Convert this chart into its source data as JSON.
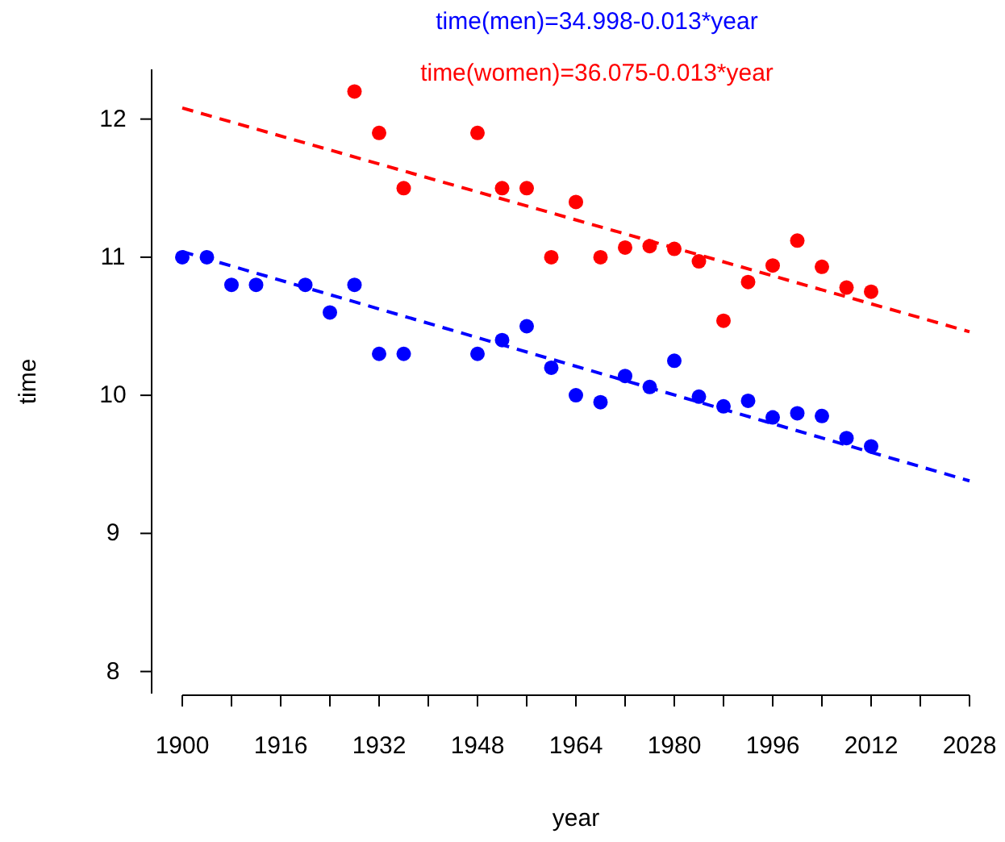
{
  "chart_data": {
    "type": "scatter",
    "xlabel": "year",
    "ylabel": "time",
    "annotations": [
      "time(men)=34.998-0.013*year",
      "time(women)=36.075-0.013*year"
    ],
    "xlim": [
      1900,
      2028
    ],
    "ylim": [
      7.84,
      12.36
    ],
    "xticks": [
      1900,
      {
        "value": 1908,
        "label": null
      },
      1916,
      {
        "value": 1924,
        "label": null
      },
      1932,
      {
        "value": 1940,
        "label": null
      },
      1948,
      {
        "value": 1956,
        "label": null
      },
      1964,
      {
        "value": 1972,
        "label": null
      },
      1980,
      {
        "value": 1988,
        "label": null
      },
      1996,
      {
        "value": 2004,
        "label": null
      },
      2012,
      {
        "value": 2020,
        "label": null
      },
      2028
    ],
    "yticks": [
      8,
      9,
      10,
      11,
      12
    ],
    "grid": false,
    "marker": "circle",
    "series": [
      {
        "type": "scatter",
        "color": "#0000ff",
        "x": [
          1900,
          1904,
          1908,
          1912,
          1920,
          1924,
          1928,
          1932,
          1936,
          1948,
          1952,
          1956,
          1960,
          1964,
          1968,
          1972,
          1976,
          1980,
          1984,
          1988,
          1992,
          1996,
          2000,
          2004,
          2008,
          2012
        ],
        "values": [
          11.0,
          11.0,
          10.8,
          10.8,
          10.8,
          10.6,
          10.8,
          10.3,
          10.3,
          10.3,
          10.4,
          10.5,
          10.2,
          10.0,
          9.95,
          10.14,
          10.06,
          10.25,
          9.99,
          9.92,
          9.96,
          9.84,
          9.87,
          9.85,
          9.69,
          9.63
        ]
      },
      {
        "type": "scatter",
        "color": "#ff0000",
        "x": [
          1928,
          1932,
          1936,
          1948,
          1952,
          1956,
          1960,
          1964,
          1968,
          1972,
          1976,
          1980,
          1984,
          1988,
          1992,
          1996,
          2000,
          2004,
          2008,
          2012
        ],
        "values": [
          12.2,
          11.9,
          11.5,
          11.9,
          11.5,
          11.5,
          11.0,
          11.4,
          11.0,
          11.07,
          11.08,
          11.06,
          10.97,
          10.54,
          10.82,
          10.94,
          11.12,
          10.93,
          10.78,
          10.75
        ]
      },
      {
        "type": "line",
        "color": "#0000ff",
        "line_style": "dashed",
        "marker": "none",
        "x": [
          1900,
          2028
        ],
        "values": [
          11.04,
          9.38
        ]
      },
      {
        "type": "line",
        "color": "#ff0000",
        "line_style": "dashed",
        "marker": "none",
        "x": [
          1900,
          2028
        ],
        "values": [
          12.08,
          10.46
        ]
      }
    ]
  }
}
